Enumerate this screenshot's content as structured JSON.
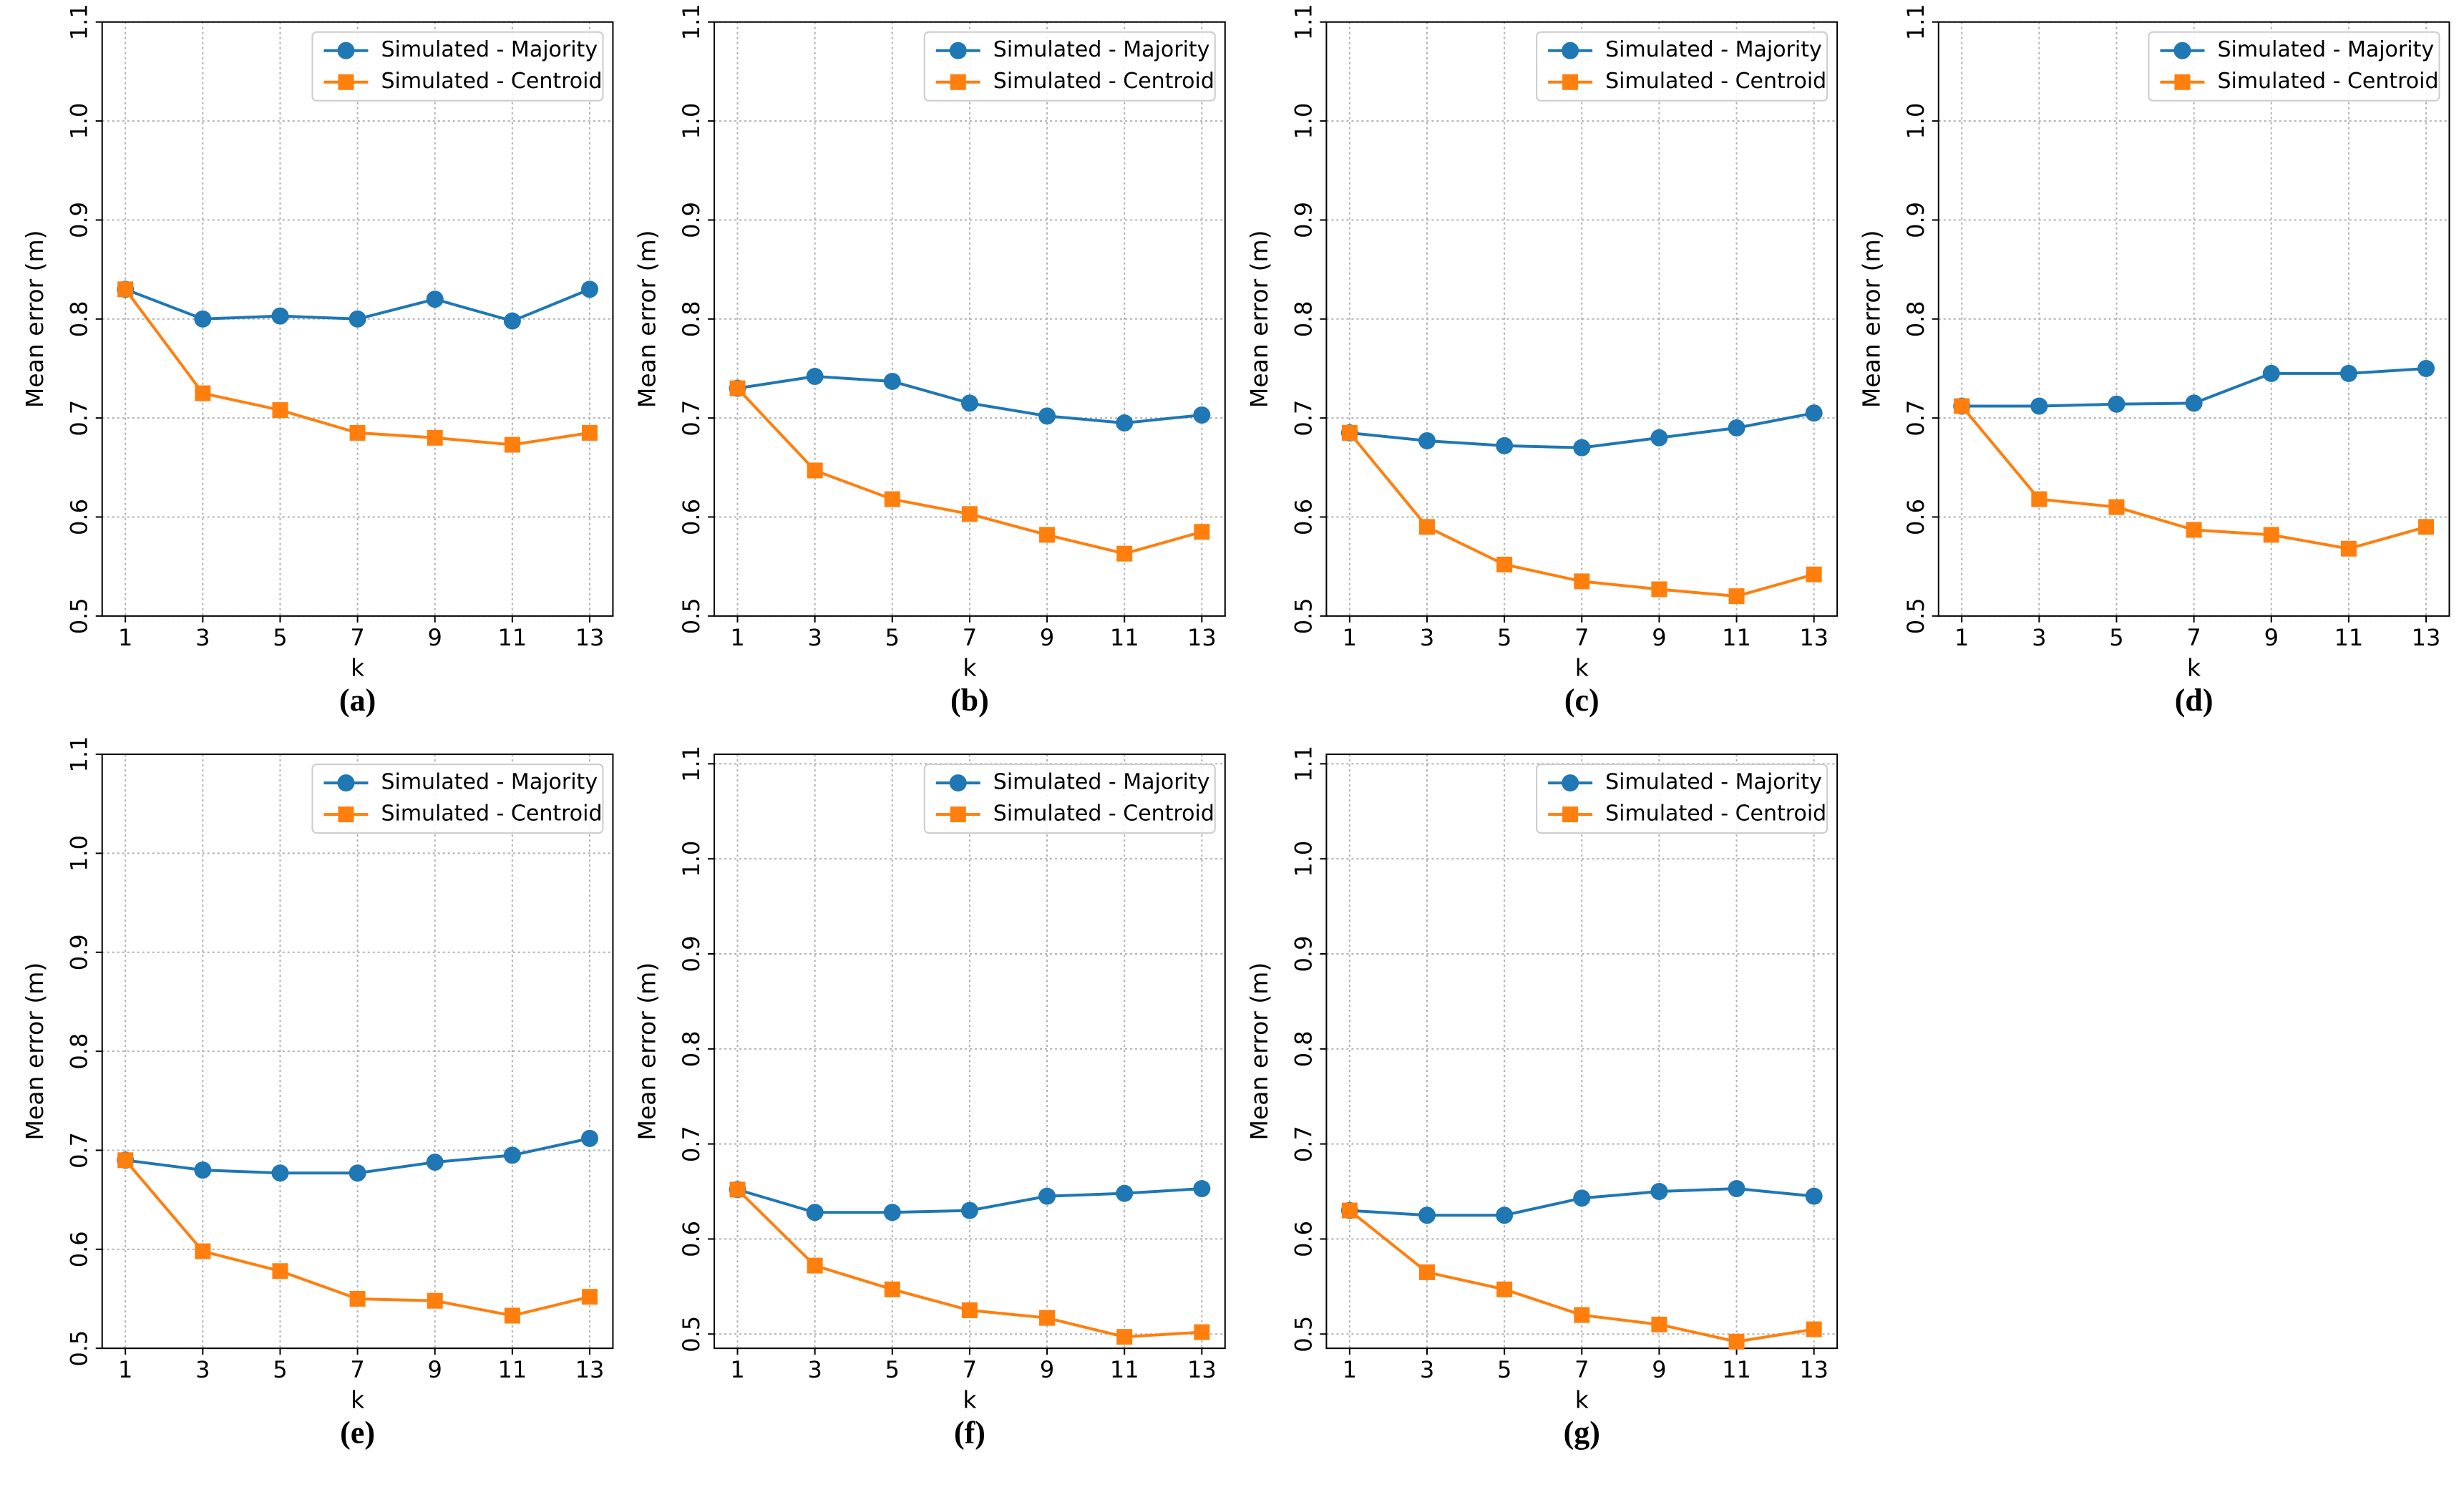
{
  "chart_data": [
    {
      "type": "line",
      "caption": "(a)",
      "xlabel": "k",
      "ylabel": "Mean error (m)",
      "x": [
        1,
        3,
        5,
        7,
        9,
        11,
        13
      ],
      "xlim": [
        0.4,
        13.6
      ],
      "xticks": [
        1,
        3,
        5,
        7,
        9,
        11,
        13
      ],
      "ylim": [
        0.5,
        1.1
      ],
      "yticks": [
        0.5,
        0.6,
        0.7,
        0.8,
        0.9,
        {
          "value": 1,
          "label": "1.0"
        },
        1.1
      ],
      "grid": true,
      "legend": "upper right",
      "series": [
        {
          "name": "Simulated - Majority",
          "color": "#1f77b4",
          "marker": "circle",
          "values": [
            0.83,
            0.8,
            0.803,
            0.8,
            0.82,
            0.798,
            0.83
          ]
        },
        {
          "name": "Simulated - Centroid",
          "color": "#ff7f0e",
          "marker": "square",
          "values": [
            0.83,
            0.725,
            0.708,
            0.685,
            0.68,
            0.673,
            0.685
          ]
        }
      ]
    },
    {
      "type": "line",
      "caption": "(b)",
      "xlabel": "k",
      "ylabel": "Mean error (m)",
      "x": [
        1,
        3,
        5,
        7,
        9,
        11,
        13
      ],
      "xlim": [
        0.4,
        13.6
      ],
      "xticks": [
        1,
        3,
        5,
        7,
        9,
        11,
        13
      ],
      "ylim": [
        0.5,
        1.1
      ],
      "yticks": [
        0.5,
        0.6,
        0.7,
        0.8,
        0.9,
        {
          "value": 1,
          "label": "1.0"
        },
        1.1
      ],
      "grid": true,
      "legend": "upper right",
      "series": [
        {
          "name": "Simulated - Majority",
          "color": "#1f77b4",
          "marker": "circle",
          "values": [
            0.73,
            0.742,
            0.737,
            0.715,
            0.702,
            0.695,
            0.703
          ]
        },
        {
          "name": "Simulated - Centroid",
          "color": "#ff7f0e",
          "marker": "square",
          "values": [
            0.73,
            0.647,
            0.618,
            0.603,
            0.582,
            0.563,
            0.585
          ]
        }
      ]
    },
    {
      "type": "line",
      "caption": "(c)",
      "xlabel": "k",
      "ylabel": "Mean error (m)",
      "x": [
        1,
        3,
        5,
        7,
        9,
        11,
        13
      ],
      "xlim": [
        0.4,
        13.6
      ],
      "xticks": [
        1,
        3,
        5,
        7,
        9,
        11,
        13
      ],
      "ylim": [
        0.5,
        1.1
      ],
      "yticks": [
        0.5,
        0.6,
        0.7,
        0.8,
        0.9,
        {
          "value": 1,
          "label": "1.0"
        },
        1.1
      ],
      "grid": true,
      "legend": "upper right",
      "series": [
        {
          "name": "Simulated - Majority",
          "color": "#1f77b4",
          "marker": "circle",
          "values": [
            0.685,
            0.677,
            0.672,
            0.67,
            0.68,
            0.69,
            0.705
          ]
        },
        {
          "name": "Simulated - Centroid",
          "color": "#ff7f0e",
          "marker": "square",
          "values": [
            0.685,
            0.59,
            0.552,
            0.535,
            0.527,
            0.52,
            0.542
          ]
        }
      ]
    },
    {
      "type": "line",
      "caption": "(d)",
      "xlabel": "k",
      "ylabel": "Mean error (m)",
      "x": [
        1,
        3,
        5,
        7,
        9,
        11,
        13
      ],
      "xlim": [
        0.4,
        13.6
      ],
      "xticks": [
        1,
        3,
        5,
        7,
        9,
        11,
        13
      ],
      "ylim": [
        0.5,
        1.1
      ],
      "yticks": [
        0.5,
        0.6,
        0.7,
        0.8,
        0.9,
        {
          "value": 1,
          "label": "1.0"
        },
        1.1
      ],
      "grid": true,
      "legend": "upper right",
      "series": [
        {
          "name": "Simulated - Majority",
          "color": "#1f77b4",
          "marker": "circle",
          "values": [
            0.712,
            0.712,
            0.714,
            0.715,
            0.745,
            0.745,
            0.75
          ]
        },
        {
          "name": "Simulated - Centroid",
          "color": "#ff7f0e",
          "marker": "square",
          "values": [
            0.712,
            0.618,
            0.61,
            0.587,
            0.582,
            0.568,
            0.59
          ]
        }
      ]
    },
    {
      "type": "line",
      "caption": "(e)",
      "xlabel": "k",
      "ylabel": "Mean error (m)",
      "x": [
        1,
        3,
        5,
        7,
        9,
        11,
        13
      ],
      "xlim": [
        0.4,
        13.6
      ],
      "xticks": [
        1,
        3,
        5,
        7,
        9,
        11,
        13
      ],
      "ylim": [
        0.5,
        1.1
      ],
      "yticks": [
        0.5,
        0.6,
        0.7,
        0.8,
        0.9,
        {
          "value": 1,
          "label": "1.0"
        },
        1.1
      ],
      "grid": true,
      "legend": "upper right",
      "series": [
        {
          "name": "Simulated - Majority",
          "color": "#1f77b4",
          "marker": "circle",
          "values": [
            0.69,
            0.68,
            0.677,
            0.677,
            0.688,
            0.695,
            0.712
          ]
        },
        {
          "name": "Simulated - Centroid",
          "color": "#ff7f0e",
          "marker": "square",
          "values": [
            0.69,
            0.598,
            0.578,
            0.55,
            0.548,
            0.533,
            0.552
          ]
        }
      ]
    },
    {
      "type": "line",
      "caption": "(f)",
      "xlabel": "k",
      "ylabel": "Mean error (m)",
      "x": [
        1,
        3,
        5,
        7,
        9,
        11,
        13
      ],
      "xlim": [
        0.4,
        13.6
      ],
      "xticks": [
        1,
        3,
        5,
        7,
        9,
        11,
        13
      ],
      "ylim": [
        0.485,
        1.11
      ],
      "yticks": [
        0.5,
        0.6,
        0.7,
        0.8,
        0.9,
        {
          "value": 1,
          "label": "1.0"
        },
        1.1
      ],
      "grid": true,
      "legend": "upper right",
      "series": [
        {
          "name": "Simulated - Majority",
          "color": "#1f77b4",
          "marker": "circle",
          "values": [
            0.652,
            0.628,
            0.628,
            0.63,
            0.645,
            0.648,
            0.653
          ]
        },
        {
          "name": "Simulated - Centroid",
          "color": "#ff7f0e",
          "marker": "square",
          "values": [
            0.652,
            0.572,
            0.547,
            0.525,
            0.517,
            0.497,
            0.502
          ]
        }
      ]
    },
    {
      "type": "line",
      "caption": "(g)",
      "xlabel": "k",
      "ylabel": "Mean error (m)",
      "x": [
        1,
        3,
        5,
        7,
        9,
        11,
        13
      ],
      "xlim": [
        0.4,
        13.6
      ],
      "xticks": [
        1,
        3,
        5,
        7,
        9,
        11,
        13
      ],
      "ylim": [
        0.485,
        1.11
      ],
      "yticks": [
        0.5,
        0.6,
        0.7,
        0.8,
        0.9,
        {
          "value": 1,
          "label": "1.0"
        },
        1.1
      ],
      "grid": true,
      "legend": "upper right",
      "series": [
        {
          "name": "Simulated - Majority",
          "color": "#1f77b4",
          "marker": "circle",
          "values": [
            0.63,
            0.625,
            0.625,
            0.643,
            0.65,
            0.653,
            0.645
          ]
        },
        {
          "name": "Simulated - Centroid",
          "color": "#ff7f0e",
          "marker": "square",
          "values": [
            0.63,
            0.565,
            0.547,
            0.52,
            0.51,
            0.492,
            0.505
          ]
        }
      ]
    }
  ]
}
